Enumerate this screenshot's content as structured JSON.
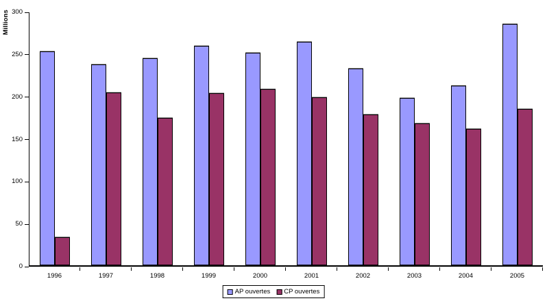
{
  "chart_data": {
    "type": "bar",
    "title": "",
    "ylabel": "Millions",
    "xlabel": "",
    "ylim": [
      0,
      300
    ],
    "yticks": [
      0,
      50,
      100,
      150,
      200,
      250,
      300
    ],
    "grid": false,
    "legend_position": "bottom-center",
    "categories": [
      "1996",
      "1997",
      "1998",
      "1999",
      "2000",
      "2001",
      "2002",
      "2003",
      "2004",
      "2005"
    ],
    "series": [
      {
        "name": "AP ouvertes",
        "color": "#9999FF",
        "values": [
          252,
          237,
          244,
          259,
          251,
          264,
          232,
          197,
          212,
          285
        ]
      },
      {
        "name": "CP ouvertes",
        "color": "#993366",
        "values": [
          33,
          204,
          174,
          203,
          208,
          198,
          178,
          167,
          161,
          184
        ]
      }
    ]
  },
  "colors": {
    "axis": "#000000",
    "background": "#FFFFFF",
    "bar_border": "#000000"
  }
}
